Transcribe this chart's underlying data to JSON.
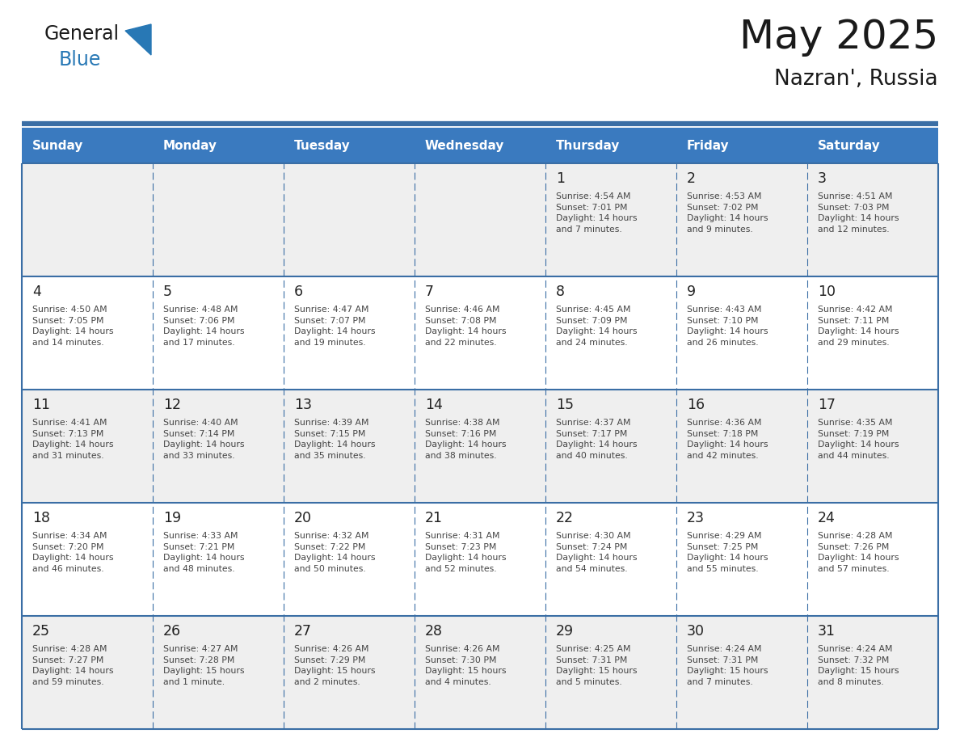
{
  "title": "May 2025",
  "subtitle": "Nazran', Russia",
  "days_of_week": [
    "Sunday",
    "Monday",
    "Tuesday",
    "Wednesday",
    "Thursday",
    "Friday",
    "Saturday"
  ],
  "header_bg": "#3a7abf",
  "header_text_color": "#ffffff",
  "cell_bg_light": "#efefef",
  "cell_bg_white": "#ffffff",
  "row_bg_pattern": [
    "light",
    "white",
    "light",
    "white",
    "light"
  ],
  "border_color": "#3a6ea5",
  "text_color": "#444444",
  "day_number_color": "#222222",
  "generalblue_black": "#1a1a1a",
  "generalblue_blue": "#2878b5",
  "calendar_data": [
    [
      {
        "day": null,
        "info": null
      },
      {
        "day": null,
        "info": null
      },
      {
        "day": null,
        "info": null
      },
      {
        "day": null,
        "info": null
      },
      {
        "day": 1,
        "info": "Sunrise: 4:54 AM\nSunset: 7:01 PM\nDaylight: 14 hours\nand 7 minutes."
      },
      {
        "day": 2,
        "info": "Sunrise: 4:53 AM\nSunset: 7:02 PM\nDaylight: 14 hours\nand 9 minutes."
      },
      {
        "day": 3,
        "info": "Sunrise: 4:51 AM\nSunset: 7:03 PM\nDaylight: 14 hours\nand 12 minutes."
      }
    ],
    [
      {
        "day": 4,
        "info": "Sunrise: 4:50 AM\nSunset: 7:05 PM\nDaylight: 14 hours\nand 14 minutes."
      },
      {
        "day": 5,
        "info": "Sunrise: 4:48 AM\nSunset: 7:06 PM\nDaylight: 14 hours\nand 17 minutes."
      },
      {
        "day": 6,
        "info": "Sunrise: 4:47 AM\nSunset: 7:07 PM\nDaylight: 14 hours\nand 19 minutes."
      },
      {
        "day": 7,
        "info": "Sunrise: 4:46 AM\nSunset: 7:08 PM\nDaylight: 14 hours\nand 22 minutes."
      },
      {
        "day": 8,
        "info": "Sunrise: 4:45 AM\nSunset: 7:09 PM\nDaylight: 14 hours\nand 24 minutes."
      },
      {
        "day": 9,
        "info": "Sunrise: 4:43 AM\nSunset: 7:10 PM\nDaylight: 14 hours\nand 26 minutes."
      },
      {
        "day": 10,
        "info": "Sunrise: 4:42 AM\nSunset: 7:11 PM\nDaylight: 14 hours\nand 29 minutes."
      }
    ],
    [
      {
        "day": 11,
        "info": "Sunrise: 4:41 AM\nSunset: 7:13 PM\nDaylight: 14 hours\nand 31 minutes."
      },
      {
        "day": 12,
        "info": "Sunrise: 4:40 AM\nSunset: 7:14 PM\nDaylight: 14 hours\nand 33 minutes."
      },
      {
        "day": 13,
        "info": "Sunrise: 4:39 AM\nSunset: 7:15 PM\nDaylight: 14 hours\nand 35 minutes."
      },
      {
        "day": 14,
        "info": "Sunrise: 4:38 AM\nSunset: 7:16 PM\nDaylight: 14 hours\nand 38 minutes."
      },
      {
        "day": 15,
        "info": "Sunrise: 4:37 AM\nSunset: 7:17 PM\nDaylight: 14 hours\nand 40 minutes."
      },
      {
        "day": 16,
        "info": "Sunrise: 4:36 AM\nSunset: 7:18 PM\nDaylight: 14 hours\nand 42 minutes."
      },
      {
        "day": 17,
        "info": "Sunrise: 4:35 AM\nSunset: 7:19 PM\nDaylight: 14 hours\nand 44 minutes."
      }
    ],
    [
      {
        "day": 18,
        "info": "Sunrise: 4:34 AM\nSunset: 7:20 PM\nDaylight: 14 hours\nand 46 minutes."
      },
      {
        "day": 19,
        "info": "Sunrise: 4:33 AM\nSunset: 7:21 PM\nDaylight: 14 hours\nand 48 minutes."
      },
      {
        "day": 20,
        "info": "Sunrise: 4:32 AM\nSunset: 7:22 PM\nDaylight: 14 hours\nand 50 minutes."
      },
      {
        "day": 21,
        "info": "Sunrise: 4:31 AM\nSunset: 7:23 PM\nDaylight: 14 hours\nand 52 minutes."
      },
      {
        "day": 22,
        "info": "Sunrise: 4:30 AM\nSunset: 7:24 PM\nDaylight: 14 hours\nand 54 minutes."
      },
      {
        "day": 23,
        "info": "Sunrise: 4:29 AM\nSunset: 7:25 PM\nDaylight: 14 hours\nand 55 minutes."
      },
      {
        "day": 24,
        "info": "Sunrise: 4:28 AM\nSunset: 7:26 PM\nDaylight: 14 hours\nand 57 minutes."
      }
    ],
    [
      {
        "day": 25,
        "info": "Sunrise: 4:28 AM\nSunset: 7:27 PM\nDaylight: 14 hours\nand 59 minutes."
      },
      {
        "day": 26,
        "info": "Sunrise: 4:27 AM\nSunset: 7:28 PM\nDaylight: 15 hours\nand 1 minute."
      },
      {
        "day": 27,
        "info": "Sunrise: 4:26 AM\nSunset: 7:29 PM\nDaylight: 15 hours\nand 2 minutes."
      },
      {
        "day": 28,
        "info": "Sunrise: 4:26 AM\nSunset: 7:30 PM\nDaylight: 15 hours\nand 4 minutes."
      },
      {
        "day": 29,
        "info": "Sunrise: 4:25 AM\nSunset: 7:31 PM\nDaylight: 15 hours\nand 5 minutes."
      },
      {
        "day": 30,
        "info": "Sunrise: 4:24 AM\nSunset: 7:31 PM\nDaylight: 15 hours\nand 7 minutes."
      },
      {
        "day": 31,
        "info": "Sunrise: 4:24 AM\nSunset: 7:32 PM\nDaylight: 15 hours\nand 8 minutes."
      }
    ]
  ]
}
